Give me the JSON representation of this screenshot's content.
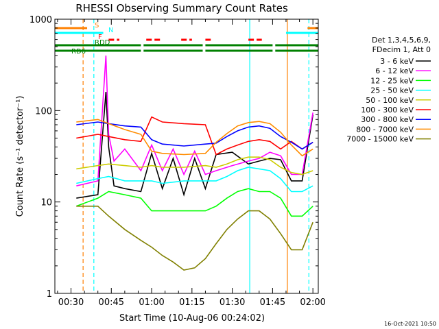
{
  "chart_data": {
    "type": "line",
    "title": "RHESSI Observing Summary Count Rates",
    "xlabel": "Start Time (10-Aug-06 00:24:02)",
    "ylabel": "Count Rate (s⁻¹ detector⁻¹)",
    "y_scale": "log",
    "ylim": [
      1,
      1000
    ],
    "xlim_min": [
      24,
      122
    ],
    "x_ticks": [
      "00:30",
      "00:45",
      "01:00",
      "01:15",
      "01:30",
      "01:45",
      "02:00"
    ],
    "y_ticks": [
      "1",
      "10",
      "100",
      "1000"
    ],
    "grid": false,
    "legend_header": [
      "Det 1,3,4,5,6,9,",
      "FDecim 1, Att 0"
    ],
    "legend_placement": "right",
    "series": [
      {
        "name": "3 - 6 keV",
        "color": "#000000",
        "x": [
          32,
          40,
          43,
          44,
          46,
          50,
          56,
          60,
          64,
          68,
          72,
          76,
          80,
          84,
          90,
          96,
          100,
          104,
          108,
          112,
          116,
          120
        ],
        "y": [
          11,
          12,
          160,
          40,
          15,
          14,
          13,
          34,
          14,
          30,
          12,
          30,
          14,
          33,
          35,
          26,
          28,
          30,
          29,
          17,
          17,
          90
        ]
      },
      {
        "name": "6 - 12 keV",
        "color": "#ff00ff",
        "x": [
          32,
          40,
          43,
          44,
          46,
          50,
          56,
          60,
          64,
          68,
          72,
          76,
          80,
          84,
          90,
          96,
          100,
          104,
          108,
          112,
          116,
          120
        ],
        "y": [
          15,
          17,
          400,
          55,
          28,
          38,
          22,
          42,
          22,
          38,
          20,
          36,
          20,
          22,
          25,
          28,
          30,
          35,
          32,
          20,
          20,
          95
        ]
      },
      {
        "name": "12 - 25 keV",
        "color": "#00ff00",
        "x": [
          32,
          40,
          44,
          50,
          56,
          60,
          64,
          72,
          80,
          84,
          88,
          92,
          96,
          100,
          104,
          108,
          112,
          116,
          120
        ],
        "y": [
          9,
          11,
          13,
          12,
          11,
          8,
          8,
          8,
          8,
          9,
          11,
          13,
          14,
          13,
          13,
          11,
          7,
          7,
          9
        ]
      },
      {
        "name": "25 - 50 keV",
        "color": "#00ffff",
        "x": [
          32,
          40,
          44,
          50,
          56,
          60,
          64,
          72,
          80,
          84,
          88,
          92,
          96,
          100,
          104,
          108,
          112,
          116,
          120
        ],
        "y": [
          16,
          18,
          19,
          17,
          17,
          17,
          16,
          17,
          17,
          17,
          19,
          22,
          24,
          23,
          22,
          18,
          13,
          13,
          15
        ]
      },
      {
        "name": "50 - 100 keV",
        "color": "#cccc00",
        "x": [
          32,
          40,
          44,
          50,
          56,
          60,
          64,
          72,
          80,
          84,
          88,
          92,
          96,
          100,
          104,
          108,
          112,
          116,
          120
        ],
        "y": [
          23,
          25,
          26,
          25,
          24,
          25,
          24,
          24,
          25,
          24,
          26,
          29,
          31,
          31,
          29,
          24,
          21,
          20,
          22
        ]
      },
      {
        "name": "100 - 300 keV",
        "color": "#ff0000",
        "x": [
          32,
          40,
          44,
          50,
          56,
          60,
          64,
          72,
          80,
          84,
          88,
          92,
          96,
          100,
          104,
          108,
          112,
          116,
          120
        ],
        "y": [
          50,
          55,
          52,
          48,
          46,
          85,
          75,
          72,
          70,
          33,
          38,
          42,
          46,
          48,
          46,
          38,
          46,
          38,
          45
        ]
      },
      {
        "name": "300 - 800 keV",
        "color": "#0000ff",
        "x": [
          32,
          40,
          44,
          50,
          56,
          60,
          64,
          72,
          80,
          84,
          88,
          92,
          96,
          100,
          104,
          108,
          112,
          116,
          120
        ],
        "y": [
          70,
          75,
          72,
          68,
          66,
          48,
          43,
          41,
          43,
          44,
          52,
          60,
          66,
          68,
          64,
          52,
          45,
          38,
          45
        ]
      },
      {
        "name": "800 - 7000 keV",
        "color": "#ff8c00",
        "x": [
          32,
          40,
          44,
          50,
          56,
          60,
          64,
          72,
          80,
          84,
          88,
          92,
          96,
          100,
          104,
          108,
          112,
          116,
          120
        ],
        "y": [
          75,
          80,
          72,
          62,
          55,
          36,
          34,
          33,
          34,
          45,
          56,
          68,
          74,
          76,
          72,
          58,
          42,
          32,
          38
        ]
      },
      {
        "name": "7000 - 15000 keV",
        "color": "#808000",
        "x": [
          32,
          40,
          44,
          50,
          56,
          60,
          64,
          68,
          72,
          76,
          80,
          84,
          88,
          92,
          96,
          100,
          104,
          108,
          112,
          116,
          120
        ],
        "y": [
          9,
          9,
          7,
          5,
          3.8,
          3.2,
          2.6,
          2.2,
          1.8,
          1.9,
          2.4,
          3.5,
          5,
          6.5,
          8,
          8,
          6.5,
          4.5,
          3,
          3,
          6
        ]
      }
    ],
    "flags": [
      {
        "label": "S",
        "color": "#ff8000",
        "segments": [
          [
            24,
            36
          ],
          [
            118,
            122
          ]
        ]
      },
      {
        "label": "N",
        "color": "#00ffff",
        "segments": [
          [
            24,
            42
          ],
          [
            110,
            122
          ]
        ]
      },
      {
        "label": "F",
        "color": "#ff0000",
        "segments": [
          [
            44,
            48
          ],
          [
            58,
            64
          ],
          [
            71,
            75
          ],
          [
            80,
            82
          ],
          [
            96,
            101
          ]
        ]
      },
      {
        "label": "RDD",
        "color": "#008000",
        "segments": [
          [
            24,
            56
          ],
          [
            57,
            79
          ],
          [
            80,
            105
          ],
          [
            106,
            122
          ]
        ]
      },
      {
        "label": "RD6",
        "color": "#008000",
        "segments": [
          [
            24,
            56
          ],
          [
            57,
            79
          ],
          [
            80,
            105
          ],
          [
            106,
            122
          ]
        ]
      }
    ],
    "vertical_lines": [
      {
        "x": 34.5,
        "color": "#ff8000",
        "style": "dashed"
      },
      {
        "x": 38.5,
        "color": "#00ffff",
        "style": "dashed"
      },
      {
        "x": 96.5,
        "color": "#00ffff",
        "style": "solid"
      },
      {
        "x": 110.5,
        "color": "#ff8000",
        "style": "solid"
      },
      {
        "x": 118.5,
        "color": "#00ffff",
        "style": "dashed"
      }
    ]
  },
  "footer": {
    "timestamp": "16-Oct-2021 10:50"
  }
}
